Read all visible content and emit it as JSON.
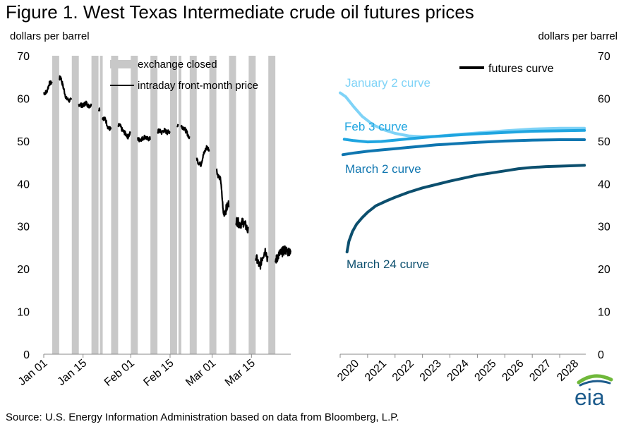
{
  "title": "Figure 1. West Texas Intermediate crude oil futures prices",
  "source": "Source: U.S. Energy Information Administration based on data from Bloomberg, L.P.",
  "logo_text": "eia",
  "colors": {
    "closed_bars": "#c8c8c8",
    "intraday": "#000000",
    "jan2": "#7fd3f7",
    "feb3": "#1fa5e0",
    "mar2": "#0f76b0",
    "mar24": "#0c4f6e",
    "logo_green": "#6fb83a",
    "logo_blue": "#1c5b8c"
  },
  "chart_data": [
    {
      "type": "bar+line",
      "panel": "left",
      "ylabel": "dollars per barrel",
      "ylim": [
        0,
        70
      ],
      "yticks": [
        "0",
        "10",
        "20",
        "30",
        "40",
        "50",
        "60",
        "70"
      ],
      "xlim_days": [
        0,
        88
      ],
      "xtick_labels": [
        "Jan 01",
        "Jan 15",
        "Feb 01",
        "Feb 15",
        "Mar 01",
        "Mar 15"
      ],
      "xtick_days": [
        0,
        14,
        31,
        45,
        60,
        74
      ],
      "legend": [
        "exchange closed",
        "intraday front-month price"
      ],
      "closed_weekend_start_days": [
        3,
        10,
        17,
        24,
        31,
        38,
        45,
        52,
        59,
        66,
        73,
        80
      ],
      "closed_holiday_days": [
        20,
        48
      ],
      "intraday_price": {
        "days": [
          0,
          1,
          2,
          3.2,
          4,
          5,
          6,
          7,
          8,
          9,
          10,
          11,
          12,
          13,
          14,
          15,
          16,
          17,
          18,
          19,
          20,
          21,
          22,
          23,
          24,
          25,
          26,
          27,
          28,
          29,
          30,
          31,
          32,
          33,
          34,
          35,
          36,
          37,
          38,
          39,
          40,
          41,
          42,
          43,
          44,
          45,
          46,
          47,
          48,
          49,
          50,
          51,
          52,
          53,
          54,
          55,
          56,
          57,
          58,
          58.6,
          59.4,
          60,
          61,
          62,
          63,
          64,
          65,
          66,
          67,
          68,
          69,
          70,
          71,
          72,
          73,
          74,
          75,
          76,
          77,
          78,
          79,
          80,
          81,
          82,
          83,
          84,
          85,
          86,
          87,
          88
        ],
        "prices": [
          61.2,
          61.5,
          63.5,
          63.8,
          62.5,
          64.2,
          65.0,
          62.5,
          60.0,
          59.5,
          59.6,
          59.8,
          58.8,
          58.5,
          58.3,
          59.0,
          58.2,
          58.5,
          58.8,
          57.8,
          57.5,
          55.5,
          55.0,
          53.0,
          52.8,
          53.5,
          53.0,
          53.8,
          52.5,
          51.8,
          51.0,
          52.0,
          51.5,
          50.8,
          50.3,
          50.5,
          51.0,
          50.5,
          50.5,
          51.0,
          51.5,
          52.5,
          52.0,
          52.5,
          52.0,
          52.3,
          52.0,
          53.0,
          54.0,
          53.5,
          53.0,
          52.0,
          50.5,
          49.0,
          47.0,
          45.0,
          44.5,
          47.0,
          48.5,
          48.2,
          47.8,
          46.0,
          45.0,
          42.0,
          41.0,
          33.0,
          34.0,
          35.5,
          34.0,
          32.0,
          31.0,
          30.5,
          31.0,
          30.0,
          28.5,
          26.5,
          24.0,
          22.0,
          20.5,
          23.0,
          24.5,
          21.5,
          20.0,
          21.0,
          22.5,
          23.5,
          24.0,
          24.5,
          24.0,
          24.5
        ]
      }
    },
    {
      "type": "line",
      "panel": "right",
      "ylabel": "dollars per barrel",
      "ylim": [
        0,
        70
      ],
      "yticks": [
        "0",
        "10",
        "20",
        "30",
        "40",
        "50",
        "60",
        "70"
      ],
      "xlim": [
        2020.0,
        2028.95
      ],
      "xtick_labels": [
        "2020",
        "2021",
        "2022",
        "2023",
        "2024",
        "2025",
        "2026",
        "2027",
        "2028"
      ],
      "legend": [
        "futures curve"
      ],
      "series": [
        {
          "name": "January 2 curve",
          "x": [
            2020.0,
            2020.2,
            2020.5,
            2020.8,
            2021.2,
            2021.6,
            2022.0,
            2022.5,
            2023.0,
            2023.5,
            2024.0,
            2025.0,
            2026.0,
            2027.0,
            2028.0,
            2028.9
          ],
          "y": [
            61.3,
            60.4,
            58.0,
            55.8,
            53.8,
            52.6,
            51.8,
            51.2,
            51.0,
            51.1,
            51.4,
            51.9,
            52.4,
            52.8,
            53.0,
            53.0
          ]
        },
        {
          "name": "Feb 3 curve",
          "x": [
            2020.15,
            2020.5,
            2021.0,
            2021.5,
            2022.0,
            2022.5,
            2023.0,
            2023.5,
            2024.0,
            2024.5,
            2025.0,
            2026.0,
            2027.0,
            2028.0,
            2028.9
          ],
          "y": [
            50.4,
            50.1,
            49.8,
            49.9,
            50.2,
            50.5,
            50.8,
            51.1,
            51.3,
            51.5,
            51.7,
            52.0,
            52.3,
            52.4,
            52.5
          ]
        },
        {
          "name": "March 2 curve",
          "x": [
            2020.1,
            2020.5,
            2021.0,
            2021.5,
            2022.0,
            2022.5,
            2023.0,
            2023.5,
            2024.0,
            2024.5,
            2025.0,
            2026.0,
            2027.0,
            2028.0,
            2028.9
          ],
          "y": [
            46.8,
            47.2,
            47.6,
            47.9,
            48.2,
            48.5,
            48.8,
            49.1,
            49.3,
            49.5,
            49.7,
            50.0,
            50.2,
            50.3,
            50.3
          ]
        },
        {
          "name": "March 24 curve",
          "x": [
            2020.25,
            2020.32,
            2020.45,
            2020.6,
            2020.8,
            2021.0,
            2021.3,
            2021.7,
            2022.0,
            2022.5,
            2023.0,
            2023.5,
            2024.0,
            2024.5,
            2025.0,
            2025.5,
            2026.0,
            2026.5,
            2027.0,
            2027.5,
            2028.0,
            2028.9
          ],
          "y": [
            24.0,
            26.5,
            28.8,
            30.5,
            32.0,
            33.3,
            34.8,
            36.0,
            36.8,
            38.0,
            39.0,
            39.8,
            40.6,
            41.3,
            42.0,
            42.5,
            43.0,
            43.5,
            43.8,
            44.0,
            44.1,
            44.3
          ]
        }
      ]
    }
  ],
  "curve_labels": {
    "jan2": "January 2 curve",
    "feb3": "Feb 3 curve",
    "mar2": "March 2 curve",
    "mar24": "March 24 curve"
  }
}
